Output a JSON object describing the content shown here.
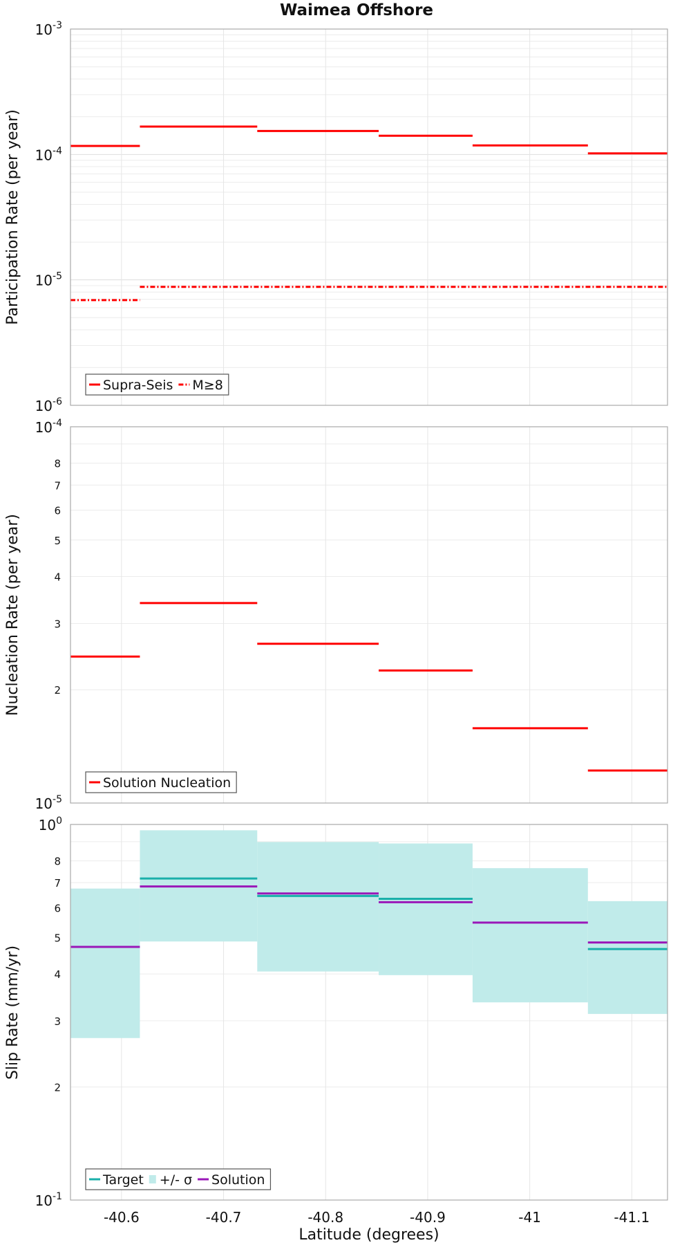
{
  "chart_data": [
    {
      "type": "line",
      "subtype": "step-segments",
      "title": "Waimea Offshore",
      "xlabel": "",
      "ylabel": "Participation Rate (per year)",
      "yscale": "log",
      "ylim": [
        1e-06,
        0.001
      ],
      "xlim": [
        -40.55,
        -41.135
      ],
      "grid": true,
      "legend_position": "bottom-left",
      "y_ticks": [
        {
          "base": "10",
          "exp": "-6"
        },
        {
          "base": "10",
          "exp": "-5"
        },
        {
          "base": "10",
          "exp": "-4"
        },
        {
          "base": "10",
          "exp": "-3"
        }
      ],
      "series": [
        {
          "name": "Supra-Seis",
          "color": "#ff0000",
          "style": "solid",
          "segments": [
            {
              "x0": -40.55,
              "x1": -40.618,
              "y": 0.000117
            },
            {
              "x0": -40.618,
              "x1": -40.733,
              "y": 0.000167
            },
            {
              "x0": -40.733,
              "x1": -40.852,
              "y": 0.000154
            },
            {
              "x0": -40.852,
              "x1": -40.944,
              "y": 0.000141
            },
            {
              "x0": -40.944,
              "x1": -41.057,
              "y": 0.000118
            },
            {
              "x0": -41.057,
              "x1": -41.135,
              "y": 0.000102
            }
          ]
        },
        {
          "name": "M≥8",
          "color": "#ff0000",
          "style": "dashdot",
          "segments": [
            {
              "x0": -40.55,
              "x1": -40.618,
              "y": 6.9e-06
            },
            {
              "x0": -40.618,
              "x1": -41.135,
              "y": 8.8e-06
            }
          ]
        }
      ]
    },
    {
      "type": "line",
      "subtype": "step-segments",
      "xlabel": "",
      "ylabel": "Nucleation Rate (per year)",
      "yscale": "log",
      "ylim": [
        1e-05,
        0.0001
      ],
      "xlim": [
        -40.55,
        -41.135
      ],
      "grid": true,
      "legend_position": "bottom-left",
      "y_ticks": [
        {
          "base": "10",
          "exp": "-5"
        },
        {
          "base": "10",
          "exp": "-4"
        }
      ],
      "y_minor_tick_labels": [
        "2",
        "3",
        "4",
        "5",
        "6",
        "7",
        "8"
      ],
      "series": [
        {
          "name": "Solution Nucleation",
          "color": "#ff0000",
          "style": "solid",
          "segments": [
            {
              "x0": -40.55,
              "x1": -40.618,
              "y": 2.45e-05
            },
            {
              "x0": -40.618,
              "x1": -40.733,
              "y": 3.4e-05
            },
            {
              "x0": -40.733,
              "x1": -40.852,
              "y": 2.65e-05
            },
            {
              "x0": -40.852,
              "x1": -40.944,
              "y": 2.25e-05
            },
            {
              "x0": -40.944,
              "x1": -41.057,
              "y": 1.58e-05
            },
            {
              "x0": -41.057,
              "x1": -41.135,
              "y": 1.22e-05
            }
          ]
        }
      ]
    },
    {
      "type": "line",
      "subtype": "step-segments-with-band",
      "xlabel": "Latitude (degrees)",
      "ylabel": "Slip Rate (mm/yr)",
      "yscale": "log",
      "ylim": [
        0.1,
        1.0
      ],
      "xlim": [
        -40.55,
        -41.135
      ],
      "grid": true,
      "legend_position": "bottom-left",
      "x_tick_labels": [
        "-40.6",
        "-40.7",
        "-40.8",
        "-40.9",
        "-41",
        "-41.1"
      ],
      "y_ticks": [
        {
          "base": "10",
          "exp": "-1"
        },
        {
          "base": "10",
          "exp": "0"
        }
      ],
      "y_minor_tick_labels": [
        "2",
        "3",
        "4",
        "5",
        "6",
        "7",
        "8"
      ],
      "series": [
        {
          "name": "+/- σ",
          "color": "#c0ebea",
          "style": "band",
          "segments": [
            {
              "x0": -40.55,
              "x1": -40.618,
              "low": 0.27,
              "high": 0.675
            },
            {
              "x0": -40.618,
              "x1": -40.733,
              "low": 0.488,
              "high": 0.965
            },
            {
              "x0": -40.733,
              "x1": -40.852,
              "low": 0.406,
              "high": 0.898
            },
            {
              "x0": -40.852,
              "x1": -40.944,
              "low": 0.397,
              "high": 0.89
            },
            {
              "x0": -40.944,
              "x1": -41.057,
              "low": 0.336,
              "high": 0.765
            },
            {
              "x0": -41.057,
              "x1": -41.135,
              "low": 0.313,
              "high": 0.625
            }
          ]
        },
        {
          "name": "Target",
          "color": "#1aafaa",
          "style": "solid",
          "segments": [
            {
              "x0": -40.618,
              "x1": -40.733,
              "y": 0.718
            },
            {
              "x0": -40.733,
              "x1": -40.852,
              "y": 0.645
            },
            {
              "x0": -40.852,
              "x1": -40.944,
              "y": 0.634
            },
            {
              "x0": -41.057,
              "x1": -41.135,
              "y": 0.466
            }
          ]
        },
        {
          "name": "Solution",
          "color": "#9a17b8",
          "style": "solid",
          "segments": [
            {
              "x0": -40.55,
              "x1": -40.618,
              "y": 0.472
            },
            {
              "x0": -40.618,
              "x1": -40.733,
              "y": 0.684
            },
            {
              "x0": -40.733,
              "x1": -40.852,
              "y": 0.655
            },
            {
              "x0": -40.852,
              "x1": -40.944,
              "y": 0.621
            },
            {
              "x0": -40.944,
              "x1": -41.057,
              "y": 0.548
            },
            {
              "x0": -41.057,
              "x1": -41.135,
              "y": 0.485
            }
          ]
        }
      ]
    }
  ]
}
